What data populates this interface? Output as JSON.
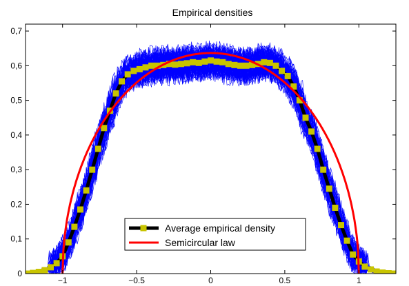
{
  "chart_data": {
    "type": "line",
    "title": "Empirical densities",
    "xlabel": "",
    "ylabel": "",
    "xlim": [
      -1.25,
      1.25
    ],
    "ylim": [
      0,
      0.72
    ],
    "x_ticks": [
      -1,
      -0.5,
      0,
      0.5,
      1
    ],
    "x_tick_labels": [
      "−1",
      "−0.5",
      "0",
      "0.5",
      "1"
    ],
    "y_ticks": [
      0,
      0.1,
      0.2,
      0.3,
      0.4,
      0.5,
      0.6,
      0.7
    ],
    "y_tick_labels": [
      "0",
      "0,1",
      "0,2",
      "0,3",
      "0,4",
      "0,5",
      "0,6",
      "0,7"
    ],
    "grid": false,
    "legend_position": "bottom-center",
    "series": [
      {
        "name": "Average empirical density",
        "color": "#000000",
        "marker_color": "#c8c400",
        "marker": "square",
        "x": [
          -1.24,
          -1.2,
          -1.16,
          -1.12,
          -1.08,
          -1.04,
          -1.0,
          -0.96,
          -0.92,
          -0.88,
          -0.84,
          -0.8,
          -0.76,
          -0.72,
          -0.68,
          -0.64,
          -0.6,
          -0.56,
          -0.52,
          -0.48,
          -0.44,
          -0.4,
          -0.36,
          -0.32,
          -0.28,
          -0.24,
          -0.2,
          -0.16,
          -0.12,
          -0.08,
          -0.04,
          0.0,
          0.04,
          0.08,
          0.12,
          0.16,
          0.2,
          0.24,
          0.28,
          0.32,
          0.36,
          0.4,
          0.44,
          0.48,
          0.52,
          0.56,
          0.6,
          0.64,
          0.68,
          0.72,
          0.76,
          0.8,
          0.84,
          0.88,
          0.92,
          0.96,
          1.0,
          1.04,
          1.08,
          1.12,
          1.16,
          1.2,
          1.24
        ],
        "values": [
          0.0,
          0.002,
          0.005,
          0.01,
          0.018,
          0.03,
          0.05,
          0.09,
          0.135,
          0.185,
          0.24,
          0.3,
          0.36,
          0.42,
          0.47,
          0.52,
          0.555,
          0.575,
          0.585,
          0.59,
          0.595,
          0.6,
          0.6,
          0.602,
          0.605,
          0.603,
          0.605,
          0.607,
          0.61,
          0.608,
          0.612,
          0.615,
          0.612,
          0.61,
          0.605,
          0.602,
          0.6,
          0.6,
          0.602,
          0.605,
          0.61,
          0.608,
          0.6,
          0.585,
          0.57,
          0.54,
          0.5,
          0.45,
          0.41,
          0.36,
          0.3,
          0.245,
          0.19,
          0.14,
          0.095,
          0.055,
          0.035,
          0.02,
          0.012,
          0.006,
          0.003,
          0.001,
          0.0
        ]
      },
      {
        "name": "Semicircular law",
        "color": "#ff0000",
        "function": "2/pi*sqrt(1-x^2)",
        "x_range": [
          -1,
          1
        ]
      }
    ],
    "empirical_curves": {
      "color": "#0000ff",
      "count": 60,
      "description_note": ""
    }
  }
}
